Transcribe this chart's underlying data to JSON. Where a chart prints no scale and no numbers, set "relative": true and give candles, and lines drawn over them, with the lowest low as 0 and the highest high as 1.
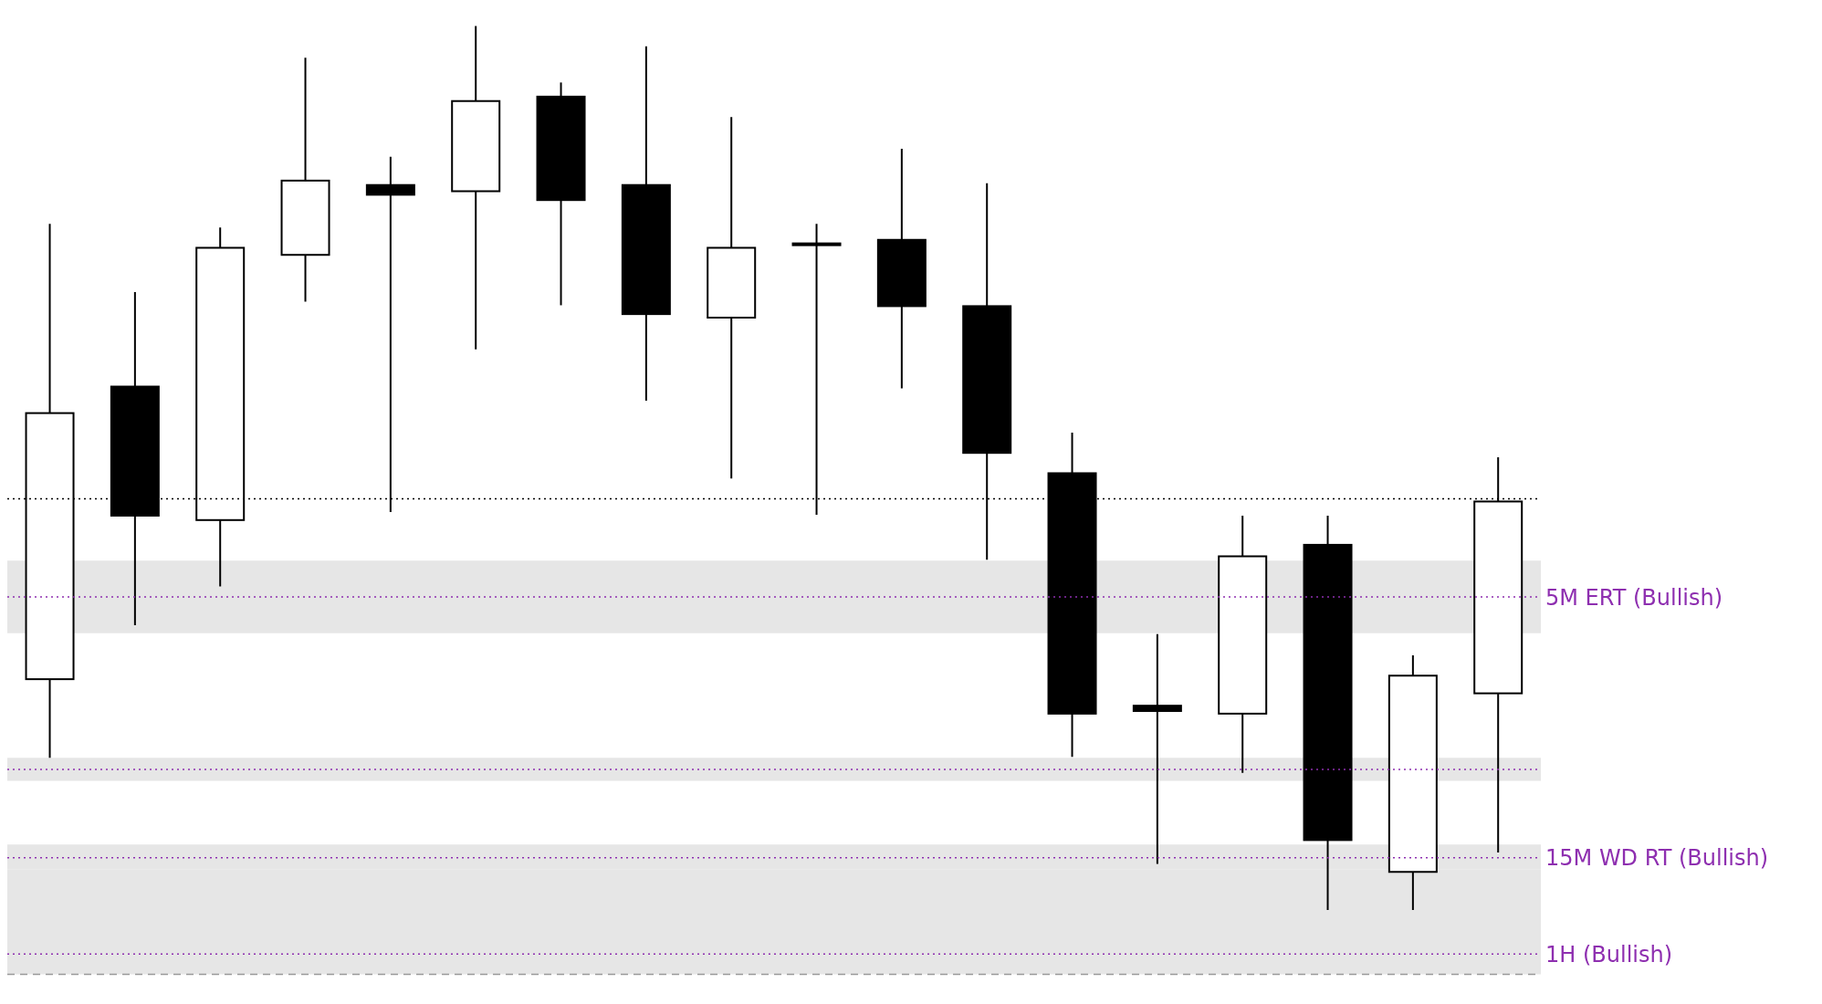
{
  "chart_data": {
    "type": "candlestick",
    "relative": true,
    "categories": [
      null,
      null,
      null,
      null,
      null,
      null,
      null,
      null,
      null,
      null,
      null,
      null,
      null,
      null,
      null,
      null,
      null,
      null
    ],
    "ohlc": [
      [
        0.261,
        0.776,
        0.172,
        0.562
      ],
      [
        0.592,
        0.699,
        0.322,
        0.446
      ],
      [
        0.441,
        0.772,
        0.366,
        0.749
      ],
      [
        0.741,
        0.964,
        0.688,
        0.825
      ],
      [
        0.82,
        0.852,
        0.45,
        0.809
      ],
      [
        0.813,
        1,
        0.634,
        0.915
      ],
      [
        0.92,
        0.936,
        0.684,
        0.803
      ],
      [
        0.82,
        0.977,
        0.576,
        0.674
      ],
      [
        0.67,
        0.897,
        0.488,
        0.749
      ],
      [
        0.754,
        0.776,
        0.447,
        0.754
      ],
      [
        0.758,
        0.861,
        0.59,
        0.683
      ],
      [
        0.683,
        0.822,
        0.396,
        0.517
      ],
      [
        0.494,
        0.54,
        0.173,
        0.222
      ],
      [
        0.231,
        0.312,
        0.052,
        0.225
      ],
      [
        0.222,
        0.446,
        0.155,
        0.4
      ],
      [
        0.413,
        0.446,
        0,
        0.079
      ],
      [
        0.043,
        0.288,
        0,
        0.265
      ],
      [
        0.245,
        0.512,
        0.065,
        0.462
      ]
    ],
    "bands": [
      {
        "axis": "y",
        "from": 0.313,
        "to": 0.395,
        "color": "#e6e6e6"
      },
      {
        "axis": "y",
        "from": 0.146,
        "to": 0.172,
        "color": "#e6e6e6"
      },
      {
        "axis": "y",
        "from": 0.046,
        "to": 0.074,
        "color": "#e6e6e6"
      },
      {
        "axis": "y",
        "from": -0.073,
        "to": 0.046,
        "color": "#e6e6e6"
      }
    ],
    "ref_lines": [
      {
        "axis": "y",
        "value": 0.465,
        "color": "#000000",
        "line_style": "dotted"
      },
      {
        "axis": "y",
        "value": 0.354,
        "label": "5M ERT (Bullish)",
        "color": "#8e2fb0",
        "line_style": "dotted"
      },
      {
        "axis": "y",
        "value": 0.159,
        "color": "#8e2fb0",
        "line_style": "dotted"
      },
      {
        "axis": "y",
        "value": 0.059,
        "label": "15M WD RT (Bullish)",
        "color": "#8e2fb0",
        "line_style": "dotted"
      },
      {
        "axis": "y",
        "value": -0.05,
        "label": "1H (Bullish)",
        "color": "#8e2fb0",
        "line_style": "dotted"
      },
      {
        "axis": "y",
        "value": -0.073,
        "color": "#999999",
        "line_style": "dashed"
      }
    ]
  }
}
